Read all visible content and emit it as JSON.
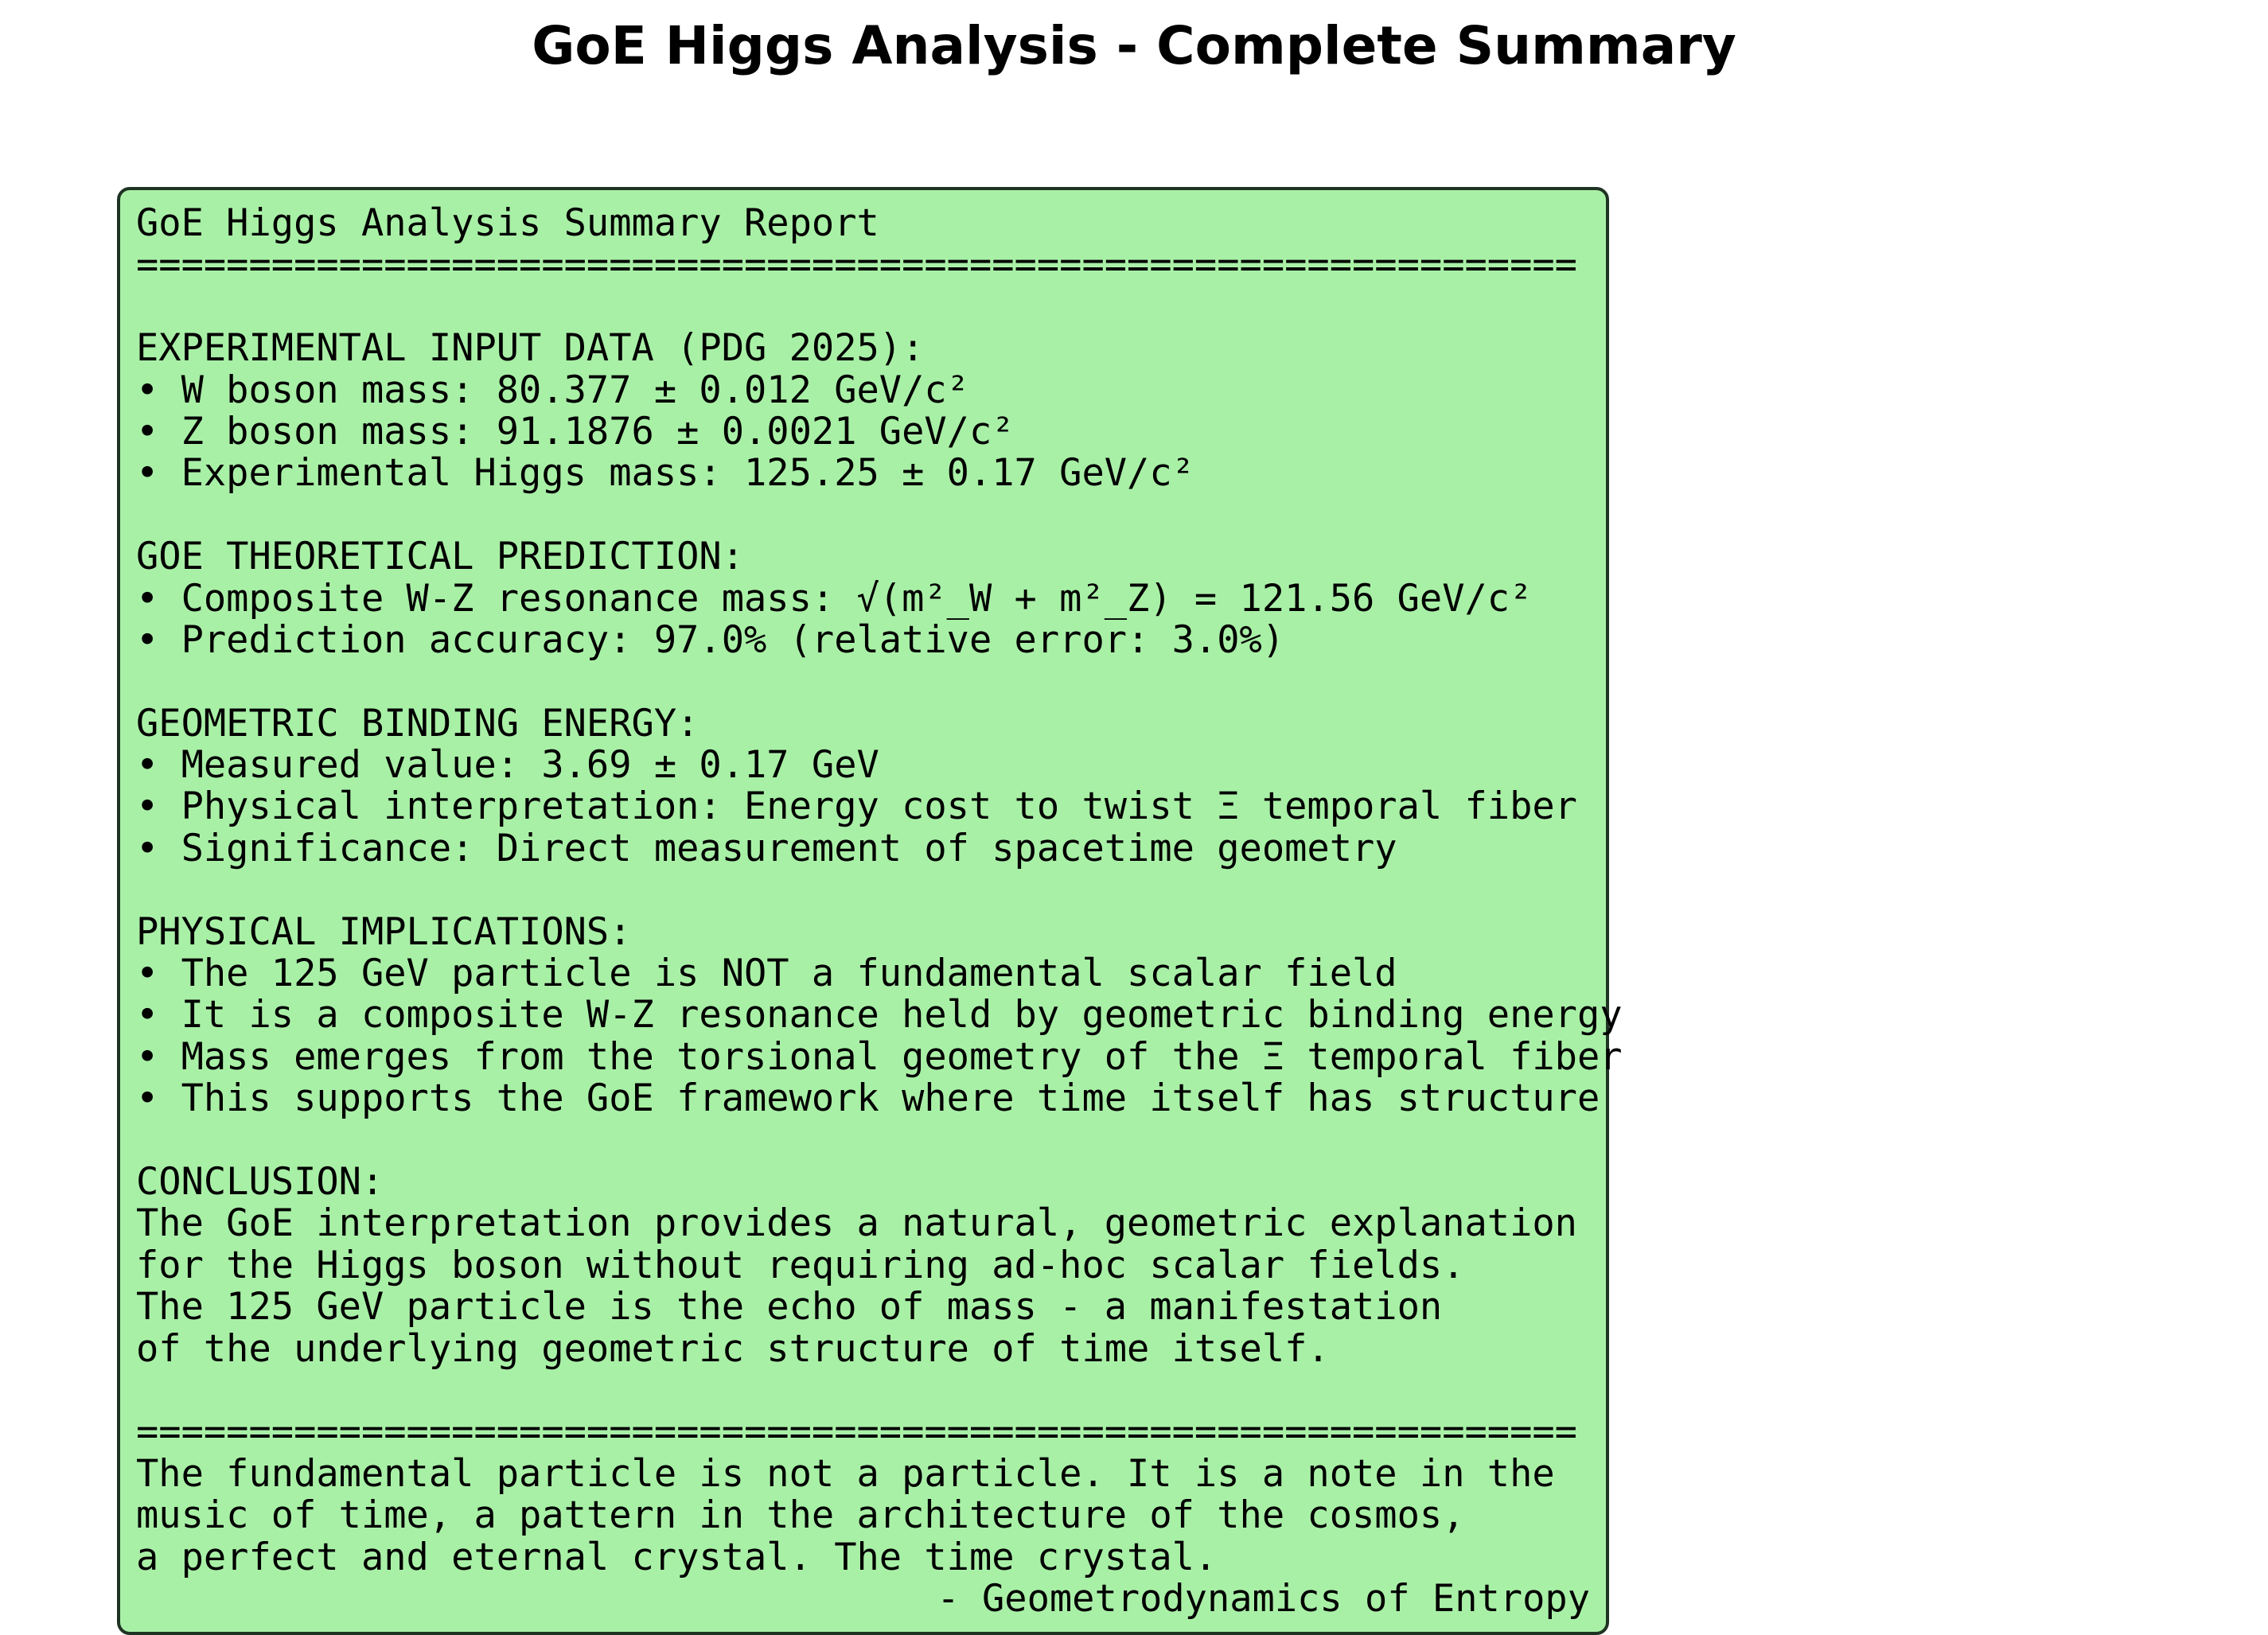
{
  "page_title": "GoE Higgs Analysis - Complete Summary",
  "colors": {
    "box_background": "#a9f0a7",
    "box_border": "#1f3323",
    "text": "#000000"
  },
  "report": {
    "lines": [
      "GoE Higgs Analysis Summary Report",
      "================================================================",
      "",
      "EXPERIMENTAL INPUT DATA (PDG 2025):",
      "• W boson mass: 80.377 ± 0.012 GeV/c²",
      "• Z boson mass: 91.1876 ± 0.0021 GeV/c²",
      "• Experimental Higgs mass: 125.25 ± 0.17 GeV/c²",
      "",
      "GOE THEORETICAL PREDICTION:",
      "• Composite W-Z resonance mass: √(m²_W + m²_Z) = 121.56 GeV/c²",
      "• Prediction accuracy: 97.0% (relative error: 3.0%)",
      "",
      "GEOMETRIC BINDING ENERGY:",
      "• Measured value: 3.69 ± 0.17 GeV",
      "• Physical interpretation: Energy cost to twist Ξ temporal fiber",
      "• Significance: Direct measurement of spacetime geometry",
      "",
      "PHYSICAL IMPLICATIONS:",
      "• The 125 GeV particle is NOT a fundamental scalar field",
      "• It is a composite W-Z resonance held by geometric binding energy",
      "• Mass emerges from the torsional geometry of the Ξ temporal fiber",
      "• This supports the GoE framework where time itself has structure",
      "",
      "CONCLUSION:",
      "The GoE interpretation provides a natural, geometric explanation",
      "for the Higgs boson without requiring ad-hoc scalar fields.",
      "The 125 GeV particle is the echo of mass - a manifestation",
      "of the underlying geometric structure of time itself.",
      "",
      "================================================================",
      "The fundamental particle is not a particle. It is a note in the",
      "music of time, a pattern in the architecture of the cosmos,",
      "a perfect and eternal crystal. The time crystal."
    ],
    "attribution": "- Geometrodynamics of Entropy"
  }
}
